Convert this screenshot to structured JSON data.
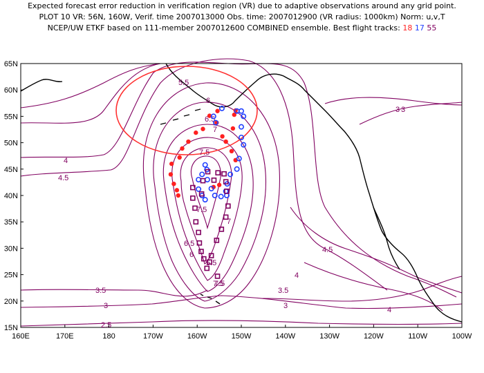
{
  "header": {
    "line1": "Expected forecast error reduction in verification region (VR) due to adaptive observations around any grid point.",
    "line2": "PLOT 10 VR: 56N, 160W, Verif. time 2007013000 Obs. time: 2007012900 (VR radius: 1000km) Norm: u,v,T",
    "line3_prefix": "NCEP/UW ETKF based on 111-member 2007012600 COMBINED ensemble.  Best flight tracks:",
    "track_ids": [
      "18",
      "17",
      "55"
    ]
  },
  "colors": {
    "contour": "#800060",
    "coast": "#000000",
    "verif_circle": "#ff3030",
    "track_red": "#ff2020",
    "track_blue": "#2040ff",
    "track_purple": "#800060"
  },
  "axes": {
    "x_ticks": [
      "160E",
      "170E",
      "180",
      "170W",
      "160W",
      "150W",
      "140W",
      "130W",
      "120W",
      "110W",
      "100W"
    ],
    "y_ticks": [
      "15N",
      "20N",
      "25N",
      "30N",
      "35N",
      "40N",
      "45N",
      "50N",
      "55N",
      "60N",
      "65N"
    ]
  },
  "contour_labels": [
    "5.5",
    "6",
    "6.5",
    "7",
    "7.5",
    "4",
    "4.5",
    "3",
    "3.5",
    "3",
    "7.5",
    "7",
    "6.5",
    "6",
    "7.5",
    "4.5",
    "4",
    "3.5",
    "3",
    "4",
    "3",
    "2.5",
    "5.5",
    "7.5"
  ],
  "map_data": {
    "lon_range": [
      160,
      260
    ],
    "lat_range": [
      15,
      65
    ],
    "verification_region": {
      "center_lat": 56,
      "center_lon": 200,
      "radius_km": 1000
    },
    "tracks": [
      {
        "id": "18",
        "marker": "filled-circle",
        "color": "red",
        "points": [
          [
            -165.8,
            46
          ],
          [
            -166,
            44
          ],
          [
            -165.3,
            42.2
          ],
          [
            -164.6,
            41
          ],
          [
            -164.3,
            40
          ],
          [
            -164,
            47.2
          ],
          [
            -163.4,
            48.9
          ],
          [
            -162,
            50.2
          ],
          [
            -160.3,
            51.9
          ],
          [
            -158.7,
            52.6
          ],
          [
            -157.2,
            55.1
          ],
          [
            -155.4,
            56
          ],
          [
            -155.6,
            53.8
          ],
          [
            -154.3,
            51.2
          ],
          [
            -153.5,
            50.2
          ],
          [
            -152.2,
            48.4
          ],
          [
            -151.3,
            46.7
          ],
          [
            -151.9,
            52.7
          ],
          [
            -151.6,
            55.3
          ],
          [
            -151.3,
            56.1
          ],
          [
            -156.3,
            41.6
          ],
          [
            -155,
            42
          ]
        ]
      },
      {
        "id": "17",
        "marker": "open-circle",
        "color": "blue",
        "points": [
          [
            -151,
            56
          ],
          [
            -150,
            56
          ],
          [
            -149.5,
            55
          ],
          [
            -150,
            53
          ],
          [
            -150,
            51
          ],
          [
            -149.5,
            49.6
          ],
          [
            -150.5,
            47
          ],
          [
            -151,
            45
          ],
          [
            -152.5,
            44
          ],
          [
            -153.2,
            42.2
          ],
          [
            -153.5,
            40.8
          ],
          [
            -154.6,
            39.8
          ],
          [
            -156,
            40
          ],
          [
            -156.8,
            41.3
          ],
          [
            -157.7,
            43
          ],
          [
            -157.8,
            44.9
          ],
          [
            -158.2,
            45.8
          ],
          [
            -158.9,
            44
          ],
          [
            -159.7,
            43
          ],
          [
            -159.7,
            41.2
          ],
          [
            -158.9,
            40
          ],
          [
            -158.2,
            39.2
          ],
          [
            -156.3,
            55
          ],
          [
            -154.4,
            56.5
          ],
          [
            -155.8,
            53.8
          ],
          [
            -153.3,
            40
          ]
        ]
      },
      {
        "id": "55",
        "marker": "open-square",
        "color": "purple",
        "points": [
          [
            -157.6,
            44.5
          ],
          [
            -161,
            41.5
          ],
          [
            -161,
            39.5
          ],
          [
            -160.5,
            37.6
          ],
          [
            -160.3,
            35
          ],
          [
            -159.7,
            33
          ],
          [
            -159.5,
            31
          ],
          [
            -159.1,
            29.4
          ],
          [
            -158.5,
            28
          ],
          [
            -157.2,
            27.4
          ],
          [
            -156.8,
            28.6
          ],
          [
            -155.6,
            31.5
          ],
          [
            -154.5,
            33.6
          ],
          [
            -153.5,
            35.9
          ],
          [
            -153,
            38
          ],
          [
            -153.3,
            40.8
          ],
          [
            -153.5,
            42.6
          ],
          [
            -153.9,
            44.1
          ],
          [
            -155.3,
            44.3
          ],
          [
            -156.2,
            42.9
          ],
          [
            -158.7,
            42.8
          ],
          [
            -159,
            40.3
          ],
          [
            -157.8,
            26.2
          ],
          [
            -155.4,
            24.7
          ]
        ]
      }
    ]
  }
}
